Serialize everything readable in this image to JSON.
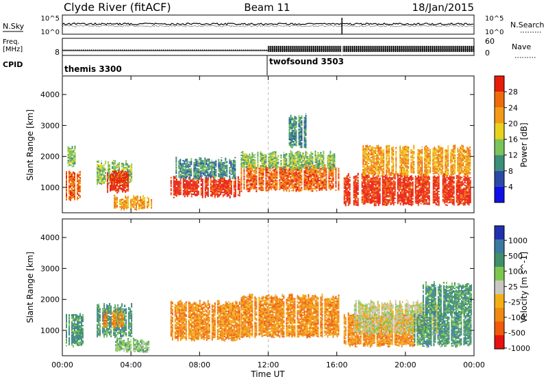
{
  "header": {
    "station": "Clyde River (fitACF)",
    "beam": "Beam 11",
    "date": "18/Jan/2015"
  },
  "noise_panel": {
    "left_label": "N.Sky",
    "right_label": "N.Search",
    "left_ticks": [
      "10^5",
      "10^0"
    ],
    "right_ticks": [
      "10^5",
      "10^0"
    ]
  },
  "freq_panel": {
    "left_label": "Freq.",
    "left_unit": "[MHz]",
    "right_label": "Nave",
    "left_ticks": [
      "8"
    ],
    "right_ticks": [
      "60",
      "0"
    ],
    "freq_mhz": 8,
    "nave_step_time": "12:00"
  },
  "cpid": {
    "label": "CPID",
    "modes": [
      {
        "name": "themis 3300",
        "start": "00:00"
      },
      {
        "name": "twofsound 3503",
        "start": "12:00"
      }
    ]
  },
  "colors": {
    "power_scale": [
      "#1010e6",
      "#2a4aa8",
      "#3b8f78",
      "#7bc45a",
      "#e8d21c",
      "#f39a16",
      "#f06a0c",
      "#e81a0a"
    ],
    "velocity_scale": [
      "#2030b0",
      "#3a7aa0",
      "#3f8f6a",
      "#7cc84e",
      "#c8c8c0",
      "#f2b014",
      "#f08a10",
      "#f05a0a",
      "#e81010"
    ]
  },
  "chart_data": [
    {
      "type": "heatmap",
      "title": "Power",
      "ylabel": "Slant Range [km]",
      "xlabel": "",
      "ylim": [
        180,
        4600
      ],
      "y_ticks": [
        "1000",
        "2000",
        "3000",
        "4000"
      ],
      "colorbar": {
        "label": "Power [dB]",
        "ticks": [
          "4",
          "8",
          "12",
          "16",
          "20",
          "24",
          "28"
        ],
        "range": [
          0,
          30
        ]
      },
      "series": [
        {
          "start": 0.2,
          "end": 1.0,
          "rmin": 600,
          "rmax": 1500,
          "value": 26
        },
        {
          "start": 0.3,
          "end": 0.7,
          "rmin": 1700,
          "rmax": 2300,
          "value": 14
        },
        {
          "start": 2.0,
          "end": 4.0,
          "rmin": 1100,
          "rmax": 1800,
          "value": 12
        },
        {
          "start": 2.6,
          "end": 3.8,
          "rmin": 850,
          "rmax": 1500,
          "value": 27
        },
        {
          "start": 3.0,
          "end": 5.2,
          "rmin": 300,
          "rmax": 700,
          "value": 20
        },
        {
          "start": 6.3,
          "end": 10.3,
          "rmin": 700,
          "rmax": 1300,
          "value": 27
        },
        {
          "start": 6.6,
          "end": 10.1,
          "rmin": 1300,
          "rmax": 1900,
          "value": 11
        },
        {
          "start": 10.4,
          "end": 16.1,
          "rmin": 900,
          "rmax": 1700,
          "value": 25
        },
        {
          "start": 10.4,
          "end": 15.9,
          "rmin": 1600,
          "rmax": 2100,
          "value": 13
        },
        {
          "start": 16.4,
          "end": 23.8,
          "rmin": 450,
          "rmax": 1400,
          "value": 28
        },
        {
          "start": 17.5,
          "end": 23.8,
          "rmin": 1400,
          "rmax": 2300,
          "value": 19
        },
        {
          "start": 13.2,
          "end": 14.2,
          "rmin": 2300,
          "rmax": 3300,
          "value": 8
        }
      ]
    },
    {
      "type": "heatmap",
      "title": "Velocity",
      "ylabel": "Slant Range [km]",
      "xlabel": "Time UT",
      "ylim": [
        180,
        4600
      ],
      "x_ticks": [
        "00:00",
        "04:00",
        "08:00",
        "12:00",
        "16:00",
        "20:00",
        "00:00"
      ],
      "y_ticks": [
        "1000",
        "2000",
        "3000",
        "4000"
      ],
      "colorbar": {
        "label": "Velocity [m s^-1]",
        "ticks": [
          "1000",
          "500",
          "100",
          "25",
          "-25",
          "-100",
          "-500",
          "-1000"
        ],
        "range": [
          -1000,
          1000
        ]
      },
      "series": [
        {
          "start": 0.2,
          "end": 1.2,
          "rmin": 500,
          "rmax": 1500,
          "value": 150
        },
        {
          "start": 2.0,
          "end": 4.0,
          "rmin": 800,
          "rmax": 1800,
          "value": 200
        },
        {
          "start": 2.3,
          "end": 3.5,
          "rmin": 1100,
          "rmax": 1600,
          "value": -200
        },
        {
          "start": 3.0,
          "end": 5.0,
          "rmin": 300,
          "rmax": 700,
          "value": 50
        },
        {
          "start": 6.3,
          "end": 10.3,
          "rmin": 700,
          "rmax": 1900,
          "value": -300
        },
        {
          "start": 10.4,
          "end": 16.1,
          "rmin": 800,
          "rmax": 2100,
          "value": -350
        },
        {
          "start": 16.4,
          "end": 20.5,
          "rmin": 500,
          "rmax": 1500,
          "value": -250
        },
        {
          "start": 17.0,
          "end": 22.0,
          "rmin": 900,
          "rmax": 1900,
          "value": 0
        },
        {
          "start": 20.5,
          "end": 23.8,
          "rmin": 500,
          "rmax": 1500,
          "value": 150
        },
        {
          "start": 21.0,
          "end": 23.8,
          "rmin": 1500,
          "rmax": 2500,
          "value": 120
        }
      ]
    }
  ]
}
